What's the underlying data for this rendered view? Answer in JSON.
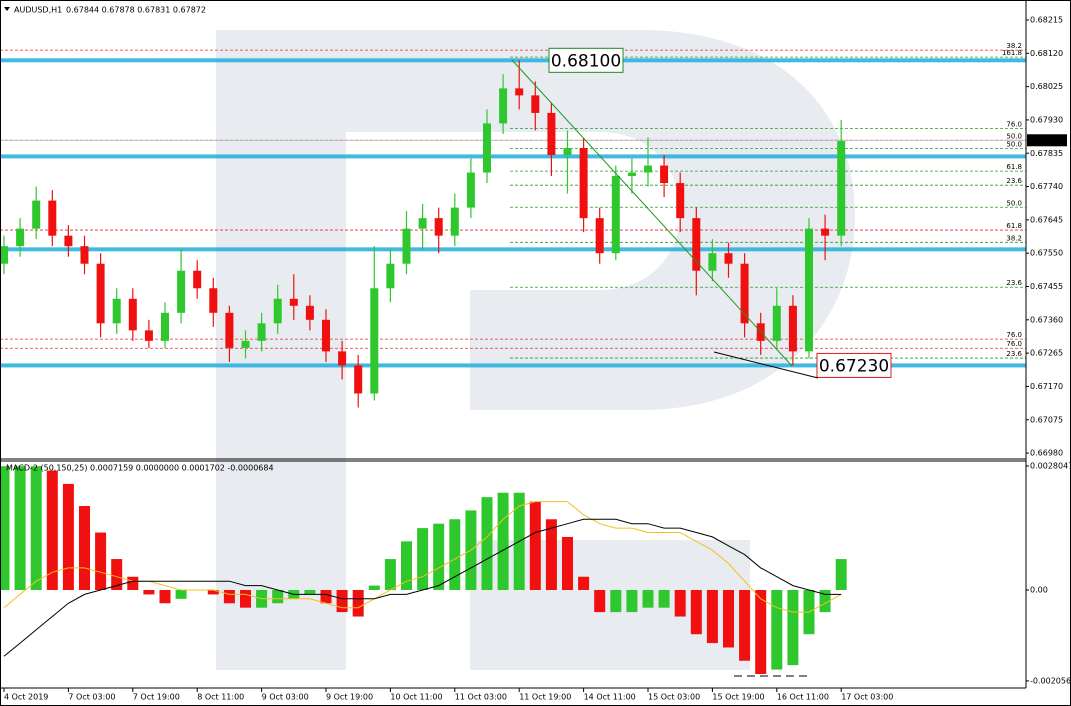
{
  "chart_data": [
    {
      "type": "candlestick",
      "title": "AUDUSD,H1",
      "readout": "0.67844 0.67878 0.67831 0.67872",
      "categories": [
        "4 Oct 2019",
        null,
        null,
        null,
        "7 Oct 03:00",
        null,
        null,
        null,
        "7 Oct 19:00",
        null,
        null,
        null,
        "8 Oct 11:00",
        null,
        null,
        null,
        "9 Oct 03:00",
        null,
        null,
        null,
        "9 Oct 19:00",
        null,
        null,
        null,
        "10 Oct 11:00",
        null,
        null,
        null,
        "11 Oct 03:00",
        null,
        null,
        null,
        "11 Oct 19:00",
        null,
        null,
        null,
        "14 Oct 11:00",
        null,
        null,
        null,
        "15 Oct 03:00",
        null,
        null,
        null,
        "15 Oct 19:00",
        null,
        null,
        null,
        "16 Oct 11:00",
        null,
        null,
        null,
        "17 Oct 03:00"
      ],
      "open": [
        0.6752,
        0.6757,
        0.6762,
        0.677,
        0.676,
        0.6757,
        0.6752,
        0.6735,
        0.6742,
        0.6733,
        0.673,
        0.6738,
        0.675,
        0.6745,
        0.6738,
        0.6728,
        0.673,
        0.6735,
        0.6742,
        0.674,
        0.6736,
        0.6727,
        0.6723,
        0.6715,
        0.6745,
        0.6752,
        0.6762,
        0.6765,
        0.676,
        0.6768,
        0.6778,
        0.6792,
        0.6802,
        0.68,
        0.6795,
        0.6783,
        0.6785,
        0.6765,
        0.6755,
        0.6777,
        0.6778,
        0.678,
        0.6775,
        0.6765,
        0.675,
        0.6755,
        0.6752,
        0.6735,
        0.673,
        0.674,
        0.6727,
        0.6762,
        0.676
      ],
      "high": [
        0.676,
        0.6765,
        0.6774,
        0.6773,
        0.6763,
        0.676,
        0.6755,
        0.6745,
        0.6745,
        0.6736,
        0.6741,
        0.6756,
        0.6753,
        0.6748,
        0.674,
        0.6733,
        0.6738,
        0.6746,
        0.6749,
        0.6743,
        0.6739,
        0.673,
        0.6726,
        0.6757,
        0.6756,
        0.6767,
        0.6769,
        0.6768,
        0.6772,
        0.6782,
        0.6796,
        0.6806,
        0.681,
        0.6804,
        0.6798,
        0.679,
        0.6788,
        0.6768,
        0.678,
        0.6782,
        0.6788,
        0.6783,
        0.6778,
        0.6768,
        0.6759,
        0.6758,
        0.6755,
        0.6738,
        0.6745,
        0.6743,
        0.6765,
        0.6766,
        0.6793
      ],
      "low": [
        0.6749,
        0.6754,
        0.6759,
        0.6757,
        0.6754,
        0.6749,
        0.6731,
        0.6732,
        0.673,
        0.6728,
        0.6728,
        0.6735,
        0.6742,
        0.6734,
        0.6724,
        0.6725,
        0.6727,
        0.6732,
        0.6736,
        0.6733,
        0.6724,
        0.6719,
        0.6711,
        0.6713,
        0.6741,
        0.6749,
        0.6756,
        0.6755,
        0.6757,
        0.6765,
        0.6775,
        0.6789,
        0.6796,
        0.679,
        0.6777,
        0.6772,
        0.6761,
        0.6752,
        0.6753,
        0.6772,
        0.6774,
        0.6771,
        0.6761,
        0.6743,
        0.6747,
        0.6748,
        0.6731,
        0.6726,
        0.6728,
        0.6723,
        0.6725,
        0.6753,
        0.6757
      ],
      "close": [
        0.6757,
        0.6762,
        0.677,
        0.676,
        0.6757,
        0.6752,
        0.6735,
        0.6742,
        0.6733,
        0.673,
        0.6738,
        0.675,
        0.6745,
        0.6738,
        0.6728,
        0.673,
        0.6735,
        0.6742,
        0.674,
        0.6736,
        0.6727,
        0.6723,
        0.6715,
        0.6745,
        0.6752,
        0.6762,
        0.6765,
        0.676,
        0.6768,
        0.6778,
        0.6792,
        0.6802,
        0.68,
        0.6795,
        0.6783,
        0.6785,
        0.6765,
        0.6755,
        0.6777,
        0.6778,
        0.678,
        0.6775,
        0.6765,
        0.675,
        0.6755,
        0.6752,
        0.6735,
        0.673,
        0.674,
        0.6727,
        0.6762,
        0.676,
        0.6787
      ],
      "up_color": "#2ec82e",
      "down_color": "#f01010",
      "ylim": [
        0.66966,
        0.68272
      ],
      "yticks": [
        0.68215,
        {
          "value": 0.6812,
          "label": "0.68120"
        },
        0.68025,
        {
          "value": 0.6793,
          "label": "0.67930"
        },
        0.67835,
        {
          "value": 0.6774,
          "label": "0.67740"
        },
        0.67645,
        {
          "value": 0.6755,
          "label": "0.67550"
        },
        0.67455,
        {
          "value": 0.6736,
          "label": "0.67360"
        },
        0.67265,
        {
          "value": 0.6717,
          "label": "0.67170"
        },
        0.67075,
        {
          "value": 0.6698,
          "label": "0.66980"
        }
      ],
      "current_price": 0.67872,
      "level_color": "#2bb3de",
      "levels": [
        {
          "value": 0.681,
          "label": "0.68100",
          "color": "#1e8a1e"
        },
        {
          "value": 0.67826
        },
        {
          "value": 0.67561
        },
        {
          "value": 0.6723,
          "label": "0.67230",
          "color": "#e01818"
        }
      ],
      "fib_levels": [
        {
          "value": 0.68129,
          "label": "38.2",
          "color": "#e03030"
        },
        {
          "value": 0.68109,
          "label": "161.8",
          "color": "#2a9a2a"
        },
        {
          "value": 0.67906,
          "label": "76.0",
          "color": "#2a9a2a"
        },
        {
          "value": 0.67872,
          "label": "50.0",
          "color": "#e03030"
        },
        {
          "value": 0.67849,
          "label": "50.0",
          "color": "#2a9a2a"
        },
        {
          "value": 0.67784,
          "label": "61.8",
          "color": "#2a9a2a"
        },
        {
          "value": 0.67744,
          "label": "23.6",
          "color": "#2a9a2a"
        },
        {
          "value": 0.67681,
          "label": "50.0",
          "color": "#2a9a2a"
        },
        {
          "value": 0.67616,
          "label": "61.8",
          "color": "#e03030"
        },
        {
          "value": 0.67581,
          "label": "38.2",
          "color": "#2a9a2a"
        },
        {
          "value": 0.67453,
          "label": "23.6",
          "color": "#2a9a2a"
        },
        {
          "value": 0.67305,
          "label": "76.0",
          "color": "#e03030"
        },
        {
          "value": 0.67279,
          "label": "76.0",
          "color": "#e03030"
        },
        {
          "value": 0.67251,
          "label": "23.6",
          "color": "#2a9a2a"
        }
      ]
    },
    {
      "type": "macd",
      "title": "MACD-2 (50,150,25) 0.0007159 0.0000000 0.0001702 -0.0000684",
      "values": [
        0.0028,
        0.0028,
        0.0028,
        0.0027,
        0.0024,
        0.0019,
        0.0013,
        0.0007,
        0.0003,
        -0.0001,
        -0.0003,
        -0.0002,
        0,
        -0.0001,
        -0.0003,
        -0.0004,
        -0.0004,
        -0.0003,
        -0.0002,
        -0.0001,
        -0.0003,
        -0.0005,
        -0.0006,
        0.0001,
        0.0007,
        0.0011,
        0.0014,
        0.0015,
        0.0016,
        0.0018,
        0.0021,
        0.0022,
        0.0022,
        0.002,
        0.0016,
        0.0012,
        0.0003,
        -0.0005,
        -0.0005,
        -0.0005,
        -0.0004,
        -0.0004,
        -0.0006,
        -0.001,
        -0.0012,
        -0.0013,
        -0.0016,
        -0.0019,
        -0.0018,
        -0.0017,
        -0.001,
        -0.0005,
        0.0007
      ],
      "up_color": "#2ec82e",
      "down_color": "#f01010",
      "signal": {
        "color": "#f0c020",
        "values": [
          -0.0004,
          -0.0001,
          0.0002,
          0.0004,
          0.0005,
          0.0005,
          0.0004,
          0.0003,
          0.0002,
          0.0002,
          0.0001,
          0,
          0,
          0,
          -0.0001,
          -0.0001,
          -0.0002,
          -0.0002,
          -0.0002,
          -0.0002,
          -0.0003,
          -0.0004,
          -0.0004,
          -0.0002,
          0,
          0.0002,
          0.0003,
          0.0005,
          0.0007,
          0.0009,
          0.0012,
          0.0016,
          0.0019,
          0.002,
          0.002,
          0.002,
          0.0017,
          0.0015,
          0.0014,
          0.0014,
          0.0013,
          0.0013,
          0.0013,
          0.0011,
          0.0009,
          0.0006,
          0.0002,
          -0.0002,
          -0.0004,
          -0.0005,
          -0.0005,
          -0.0003,
          -0.0001
        ]
      },
      "main": {
        "color": "#000000",
        "values": [
          -0.0015,
          -0.0012,
          -0.0009,
          -0.0006,
          -0.0003,
          -0.0001,
          0,
          0.0001,
          0.0002,
          0.0002,
          0.0002,
          0.0002,
          0.0002,
          0.0002,
          0.0002,
          0.0001,
          0.0001,
          0,
          -0.0001,
          -0.0001,
          -0.0001,
          -0.0002,
          -0.0002,
          -0.0002,
          -0.0001,
          -0.0001,
          0,
          0.0001,
          0.0003,
          0.0005,
          0.0007,
          0.0009,
          0.0011,
          0.0013,
          0.0014,
          0.0015,
          0.0016,
          0.0016,
          0.0016,
          0.0015,
          0.0015,
          0.0014,
          0.0014,
          0.0013,
          0.0012,
          0.001,
          0.0008,
          0.0005,
          0.0003,
          0.0001,
          0,
          -0.0001,
          -0.0001
        ]
      },
      "ylim": [
        -0.0022166,
        0.0028952
      ],
      "yticks": [
        0.0028047,
        {
          "value": 0,
          "label": "0.00"
        },
        -0.002056
      ]
    }
  ]
}
